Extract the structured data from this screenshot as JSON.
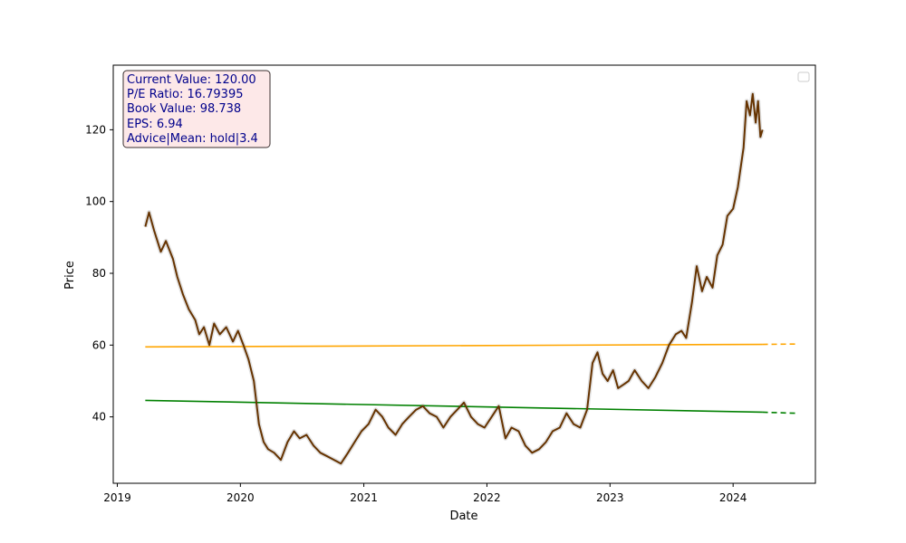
{
  "chart_data": {
    "type": "line",
    "title": "",
    "xlabel": "Date",
    "ylabel": "Price",
    "xlim": [
      "2018-12-20",
      "2024-09-01"
    ],
    "ylim": [
      21.5,
      138
    ],
    "x_ticks": [
      "2019-01-01",
      "2020-01-01",
      "2021-01-01",
      "2022-01-01",
      "2023-01-01",
      "2024-01-01"
    ],
    "x_tick_labels": [
      "2019",
      "2020",
      "2021",
      "2022",
      "2023",
      "2024"
    ],
    "y_ticks": [
      40,
      60,
      80,
      100,
      120
    ],
    "y_tick_labels": [
      "40",
      "60",
      "80",
      "100",
      "120"
    ],
    "grid": false,
    "legend": {
      "placement": "upper right",
      "entries": []
    },
    "colors": {
      "price": "#663300",
      "band": "#d9d9d9",
      "upper_trend": "#ffa500",
      "lower_trend": "#008000",
      "info_text": "#00008b",
      "info_bg": "#fde8e8",
      "info_border": "#3a2f2f"
    },
    "info_box": {
      "placement": "top-left",
      "lines": [
        "Current Value: 120.00",
        "P/E Ratio: 16.79395",
        "Book Value: 98.738",
        "EPS: 6.94",
        "Advice|Mean: hold|3.4"
      ]
    },
    "series": [
      {
        "role": "price",
        "x": [
          "2019-03-25",
          "2019-04-05",
          "2019-04-20",
          "2019-05-10",
          "2019-05-25",
          "2019-06-15",
          "2019-06-28",
          "2019-07-15",
          "2019-08-01",
          "2019-08-20",
          "2019-09-01",
          "2019-09-15",
          "2019-10-01",
          "2019-10-15",
          "2019-11-01",
          "2019-11-20",
          "2019-12-10",
          "2019-12-25",
          "2020-01-10",
          "2020-01-25",
          "2020-02-10",
          "2020-02-25",
          "2020-03-10",
          "2020-03-23",
          "2020-04-10",
          "2020-04-30",
          "2020-05-20",
          "2020-06-08",
          "2020-06-25",
          "2020-07-15",
          "2020-08-05",
          "2020-08-25",
          "2020-09-15",
          "2020-10-05",
          "2020-10-25",
          "2020-11-15",
          "2020-12-05",
          "2020-12-25",
          "2021-01-15",
          "2021-02-05",
          "2021-02-25",
          "2021-03-15",
          "2021-04-05",
          "2021-04-25",
          "2021-05-15",
          "2021-06-05",
          "2021-06-25",
          "2021-07-15",
          "2021-08-05",
          "2021-08-25",
          "2021-09-15",
          "2021-10-05",
          "2021-10-25",
          "2021-11-15",
          "2021-12-05",
          "2021-12-25",
          "2022-01-15",
          "2022-02-05",
          "2022-02-25",
          "2022-03-15",
          "2022-04-05",
          "2022-04-25",
          "2022-05-15",
          "2022-06-05",
          "2022-06-25",
          "2022-07-15",
          "2022-08-05",
          "2022-08-25",
          "2022-09-15",
          "2022-10-05",
          "2022-10-25",
          "2022-11-10",
          "2022-11-25",
          "2022-12-10",
          "2022-12-25",
          "2023-01-10",
          "2023-01-25",
          "2023-02-10",
          "2023-02-25",
          "2023-03-15",
          "2023-04-05",
          "2023-04-25",
          "2023-05-15",
          "2023-06-05",
          "2023-06-25",
          "2023-07-15",
          "2023-08-01",
          "2023-08-15",
          "2023-09-01",
          "2023-09-15",
          "2023-10-01",
          "2023-10-15",
          "2023-11-01",
          "2023-11-15",
          "2023-12-01",
          "2023-12-15",
          "2024-01-01",
          "2024-01-15",
          "2024-02-01",
          "2024-02-10",
          "2024-02-20",
          "2024-02-28",
          "2024-03-08",
          "2024-03-15",
          "2024-03-22",
          "2024-03-28"
        ],
        "y": [
          93,
          97,
          92,
          86,
          89,
          84,
          79,
          74,
          70,
          67,
          63,
          65,
          60,
          66,
          63,
          65,
          61,
          64,
          60,
          56,
          50,
          38,
          33,
          31,
          30,
          28,
          33,
          36,
          34,
          35,
          32,
          30,
          29,
          28,
          27,
          30,
          33,
          36,
          38,
          42,
          40,
          37,
          35,
          38,
          40,
          42,
          43,
          41,
          40,
          37,
          40,
          42,
          44,
          40,
          38,
          37,
          40,
          43,
          34,
          37,
          36,
          32,
          30,
          31,
          33,
          36,
          37,
          41,
          38,
          37,
          42,
          55,
          58,
          52,
          50,
          53,
          48,
          49,
          50,
          53,
          50,
          48,
          51,
          55,
          60,
          63,
          64,
          62,
          72,
          82,
          75,
          79,
          76,
          85,
          88,
          96,
          98,
          104,
          115,
          128,
          124,
          130,
          122,
          128,
          118,
          120
        ]
      }
    ],
    "trend_lines": [
      {
        "role": "upper",
        "x": [
          "2019-03-25",
          "2024-03-28"
        ],
        "y": [
          59.5,
          60.2
        ],
        "projection_x": [
          "2024-03-28",
          "2024-07-10"
        ],
        "projection_y": [
          60.2,
          60.3
        ]
      },
      {
        "role": "lower",
        "x": [
          "2019-03-25",
          "2024-03-28"
        ],
        "y": [
          44.6,
          41.3
        ],
        "projection_x": [
          "2024-03-28",
          "2024-07-10"
        ],
        "projection_y": [
          41.3,
          41.0
        ]
      }
    ]
  }
}
